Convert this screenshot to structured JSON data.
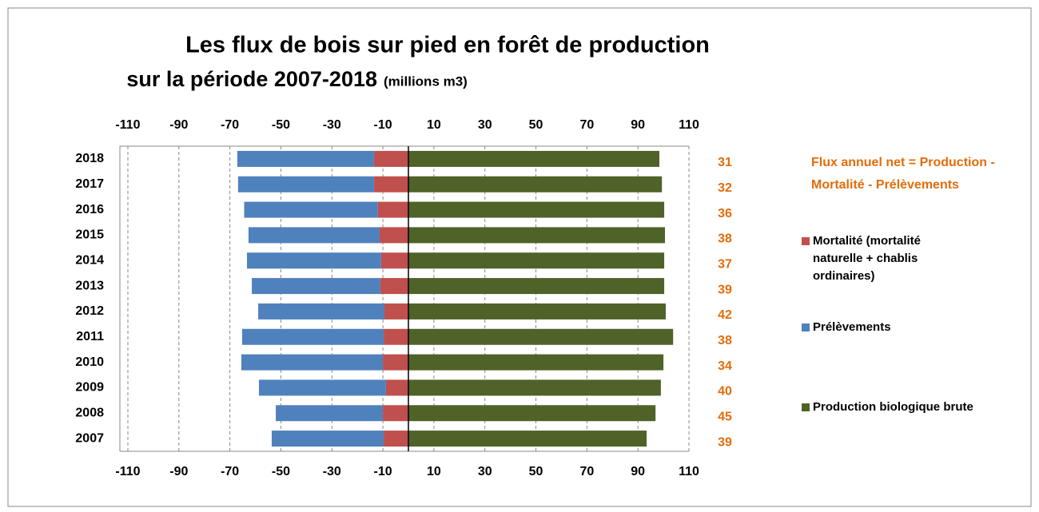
{
  "chart_data": {
    "type": "bar",
    "orientation": "horizontal",
    "stacked": true,
    "title": "Les flux de bois sur pied en forêt de production",
    "subtitle": "sur la période  2007-2018",
    "units": "(millions m3)",
    "categories": [
      "2018",
      "2017",
      "2016",
      "2015",
      "2014",
      "2013",
      "2012",
      "2011",
      "2010",
      "2009",
      "2008",
      "2007"
    ],
    "series": [
      {
        "name": "Mortalité (mortalité naturelle + chablis ordinaires)",
        "color": "#c0504d",
        "values": [
          -13.5,
          -13.5,
          -12,
          -11.3,
          -10.7,
          -11,
          -9.4,
          -9.7,
          -10,
          -8.8,
          -10,
          -9.7
        ]
      },
      {
        "name": "Prélèvements",
        "color": "#4f81bd",
        "values": [
          -53.6,
          -53.3,
          -52.4,
          -51.4,
          -52.6,
          -50.4,
          -49.5,
          -55.5,
          -55.5,
          -49.8,
          -42,
          -43.9
        ]
      },
      {
        "name": "Production biologique brute",
        "color": "#4f6228",
        "values": [
          98.4,
          99.4,
          100.3,
          100.6,
          100.3,
          100.3,
          100.9,
          103.8,
          100,
          99,
          96.9,
          93.4
        ]
      }
    ],
    "net_label": "Flux annuel net = Production - Mortalité - Prélèvements",
    "net_color": "#e46c0a",
    "net_values": [
      31,
      32,
      36,
      38,
      37,
      39,
      42,
      38,
      34,
      40,
      45,
      39
    ],
    "xlim": [
      -110,
      110
    ],
    "xticks": [
      -110,
      -90,
      -70,
      -50,
      -30,
      -10,
      10,
      30,
      50,
      70,
      90,
      110
    ],
    "grid": true
  }
}
